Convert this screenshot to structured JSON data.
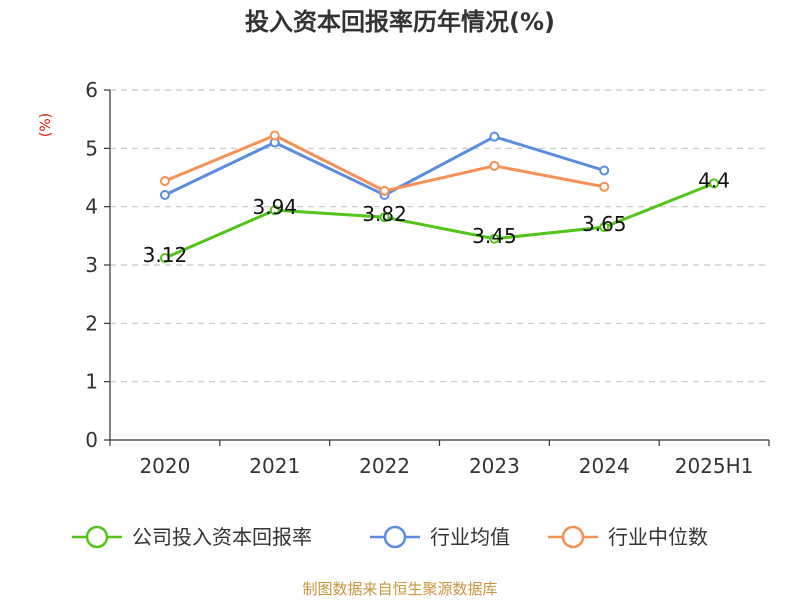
{
  "chart_data": {
    "type": "line",
    "title": "投入资本回报率历年情况(%)",
    "ylabel": "(%)",
    "xlabel": "",
    "categories": [
      "2020",
      "2021",
      "2022",
      "2023",
      "2024",
      "2025H1"
    ],
    "ylim": [
      0,
      6
    ],
    "yticks": [
      0,
      1,
      2,
      3,
      4,
      5,
      6
    ],
    "grid": true,
    "legend_position": "bottom",
    "series": [
      {
        "name": "公司投入资本回报率",
        "color": "#52c41a",
        "values": [
          3.12,
          3.94,
          3.82,
          3.45,
          3.65,
          4.4
        ],
        "labels": [
          "3.12",
          "3.94",
          "3.82",
          "3.45",
          "3.65",
          "4.4"
        ]
      },
      {
        "name": "行业均值",
        "color": "#5b8ce0",
        "values": [
          4.2,
          5.1,
          4.2,
          5.2,
          4.62,
          null
        ]
      },
      {
        "name": "行业中位数",
        "color": "#f79054",
        "values": [
          4.44,
          5.22,
          4.27,
          4.7,
          4.34,
          null
        ]
      }
    ]
  },
  "footer": {
    "source": "制图数据来自恒生聚源数据库"
  }
}
